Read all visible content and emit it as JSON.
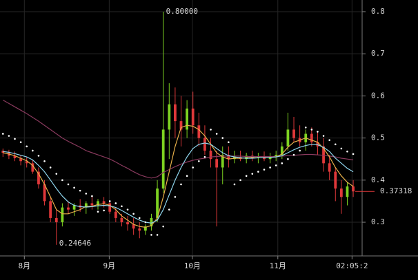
{
  "chart_data": {
    "type": "candlestick",
    "categories": [
      null,
      null,
      null,
      null,
      null,
      null,
      null,
      null,
      null,
      null,
      null,
      null,
      null,
      null,
      null,
      null,
      null,
      null,
      null,
      null,
      null,
      null,
      null,
      null,
      null,
      null,
      null,
      null,
      null,
      null,
      null,
      null,
      null,
      null,
      null,
      null,
      null,
      null,
      null,
      null,
      null,
      null,
      null,
      null,
      null,
      null,
      null,
      null,
      null,
      null,
      null,
      null,
      null,
      null,
      null,
      null,
      null,
      null,
      null,
      null
    ],
    "open": [
      0.47,
      0.465,
      0.458,
      0.452,
      0.445,
      0.44,
      0.42,
      0.39,
      0.35,
      0.31,
      0.3,
      0.335,
      0.33,
      0.34,
      0.335,
      0.345,
      0.34,
      0.35,
      0.345,
      0.325,
      0.31,
      0.3,
      0.295,
      0.285,
      0.28,
      0.29,
      0.31,
      0.38,
      0.52,
      0.58,
      0.54,
      0.52,
      0.57,
      0.53,
      0.5,
      0.47,
      0.45,
      0.43,
      0.46,
      0.45,
      0.455,
      0.45,
      0.458,
      0.452,
      0.455,
      0.45,
      0.455,
      0.46,
      0.48,
      0.52,
      0.5,
      0.49,
      0.51,
      0.49,
      0.48,
      0.44,
      0.42,
      0.38,
      0.36,
      0.385
    ],
    "high": [
      0.475,
      0.472,
      0.468,
      0.46,
      0.455,
      0.448,
      0.43,
      0.4,
      0.36,
      0.33,
      0.345,
      0.35,
      0.345,
      0.355,
      0.35,
      0.36,
      0.355,
      0.36,
      0.35,
      0.335,
      0.32,
      0.315,
      0.31,
      0.3,
      0.295,
      0.32,
      0.4,
      0.8,
      0.63,
      0.62,
      0.6,
      0.59,
      0.61,
      0.56,
      0.53,
      0.5,
      0.47,
      0.48,
      0.48,
      0.47,
      0.47,
      0.465,
      0.47,
      0.465,
      0.468,
      0.465,
      0.47,
      0.49,
      0.56,
      0.55,
      0.53,
      0.52,
      0.525,
      0.515,
      0.5,
      0.46,
      0.43,
      0.4,
      0.395,
      0.4
    ],
    "low": [
      0.455,
      0.45,
      0.445,
      0.435,
      0.43,
      0.415,
      0.38,
      0.34,
      0.3,
      0.24646,
      0.29,
      0.32,
      0.315,
      0.325,
      0.32,
      0.33,
      0.33,
      0.335,
      0.32,
      0.3,
      0.29,
      0.28,
      0.27,
      0.262,
      0.27,
      0.28,
      0.3,
      0.37,
      0.45,
      0.5,
      0.48,
      0.5,
      0.51,
      0.48,
      0.46,
      0.43,
      0.29,
      0.39,
      0.43,
      0.44,
      0.445,
      0.44,
      0.445,
      0.44,
      0.445,
      0.44,
      0.445,
      0.45,
      0.47,
      0.49,
      0.48,
      0.47,
      0.48,
      0.46,
      0.42,
      0.4,
      0.35,
      0.32,
      0.34,
      0.36
    ],
    "close": [
      0.465,
      0.458,
      0.452,
      0.445,
      0.44,
      0.42,
      0.39,
      0.35,
      0.31,
      0.3,
      0.335,
      0.33,
      0.34,
      0.335,
      0.345,
      0.34,
      0.35,
      0.345,
      0.325,
      0.31,
      0.3,
      0.295,
      0.285,
      0.28,
      0.29,
      0.31,
      0.38,
      0.52,
      0.58,
      0.54,
      0.52,
      0.57,
      0.53,
      0.5,
      0.47,
      0.45,
      0.43,
      0.46,
      0.45,
      0.455,
      0.45,
      0.458,
      0.452,
      0.455,
      0.45,
      0.455,
      0.46,
      0.48,
      0.52,
      0.5,
      0.49,
      0.51,
      0.49,
      0.48,
      0.44,
      0.42,
      0.38,
      0.36,
      0.385,
      0.37318
    ],
    "up_color": "#7ed321",
    "down_color": "#e0383a",
    "overlays": [
      {
        "color": "#8a3a5e",
        "values": [
          0.59,
          0.582,
          0.574,
          0.566,
          0.558,
          0.549,
          0.54,
          0.53,
          0.52,
          0.51,
          0.5,
          0.492,
          0.485,
          0.478,
          0.47,
          0.465,
          0.46,
          0.455,
          0.45,
          0.443,
          0.435,
          0.428,
          0.42,
          0.413,
          0.408,
          0.405,
          0.408,
          0.418,
          0.425,
          0.432,
          0.438,
          0.443,
          0.447,
          0.45,
          0.452,
          0.455,
          0.456,
          0.457,
          0.457,
          0.457,
          0.457,
          0.456,
          0.456,
          0.456,
          0.456,
          0.456,
          0.456,
          0.457,
          0.458,
          0.459,
          0.46,
          0.461,
          0.461,
          0.46,
          0.459,
          0.457,
          0.455,
          0.452,
          0.45,
          0.448
        ]
      },
      {
        "color": "#e8b04a",
        "values": [
          0.465,
          0.462,
          0.458,
          0.452,
          0.446,
          0.435,
          0.415,
          0.39,
          0.36,
          0.33,
          0.32,
          0.32,
          0.325,
          0.33,
          0.338,
          0.338,
          0.342,
          0.344,
          0.34,
          0.33,
          0.315,
          0.305,
          0.295,
          0.29,
          0.288,
          0.292,
          0.31,
          0.36,
          0.42,
          0.48,
          0.525,
          0.53,
          0.528,
          0.52,
          0.505,
          0.485,
          0.465,
          0.455,
          0.45,
          0.452,
          0.452,
          0.453,
          0.454,
          0.453,
          0.453,
          0.454,
          0.455,
          0.462,
          0.478,
          0.49,
          0.495,
          0.5,
          0.495,
          0.49,
          0.475,
          0.455,
          0.43,
          0.41,
          0.395,
          0.385
        ]
      },
      {
        "color": "#8fd6ee",
        "values": [
          0.468,
          0.466,
          0.463,
          0.459,
          0.455,
          0.448,
          0.435,
          0.42,
          0.4,
          0.38,
          0.362,
          0.348,
          0.34,
          0.337,
          0.336,
          0.337,
          0.339,
          0.34,
          0.339,
          0.335,
          0.328,
          0.32,
          0.312,
          0.305,
          0.3,
          0.298,
          0.305,
          0.33,
          0.365,
          0.4,
          0.43,
          0.455,
          0.475,
          0.485,
          0.488,
          0.485,
          0.475,
          0.465,
          0.458,
          0.455,
          0.453,
          0.452,
          0.452,
          0.453,
          0.453,
          0.454,
          0.455,
          0.458,
          0.465,
          0.472,
          0.478,
          0.482,
          0.485,
          0.484,
          0.478,
          0.468,
          0.452,
          0.44,
          0.428,
          0.42
        ]
      }
    ],
    "sar": {
      "color": "#ffffff",
      "values": [
        0.51,
        0.505,
        0.498,
        0.49,
        0.48,
        0.47,
        0.458,
        0.445,
        0.43,
        0.415,
        0.4,
        0.39,
        0.382,
        0.375,
        0.368,
        0.362,
        0.325,
        0.328,
        0.35,
        0.345,
        0.338,
        0.33,
        0.32,
        0.31,
        0.3,
        0.27,
        0.27,
        0.29,
        0.33,
        0.36,
        0.39,
        0.41,
        0.43,
        0.445,
        0.455,
        0.52,
        0.51,
        0.5,
        0.49,
        0.39,
        0.4,
        0.41,
        0.415,
        0.42,
        0.425,
        0.43,
        0.435,
        0.44,
        0.45,
        0.46,
        0.47,
        0.525,
        0.52,
        0.515,
        0.505,
        0.495,
        0.485,
        0.475,
        0.468,
        0.462
      ]
    },
    "annotations": [
      {
        "index": 27,
        "value": 0.8,
        "label": "0.80000"
      },
      {
        "index": 9,
        "value": 0.24646,
        "label": "0.24646"
      }
    ],
    "last_price": 0.37318,
    "last_price_color": "#e0383a",
    "xlim": [
      -0.5,
      60.5
    ],
    "xticks": [
      {
        "value": 3.6,
        "label": "8月"
      },
      {
        "value": 17.9,
        "label": "9月"
      },
      {
        "value": 31.9,
        "label": "10月"
      },
      {
        "value": 46.3,
        "label": "11月"
      },
      {
        "value": 58.8,
        "label": "02:05:2"
      }
    ],
    "ylim": [
      0.22,
      0.83
    ],
    "yticks": [
      0.3,
      0.4,
      0.5,
      0.6,
      0.7,
      0.8
    ],
    "grid": true
  }
}
